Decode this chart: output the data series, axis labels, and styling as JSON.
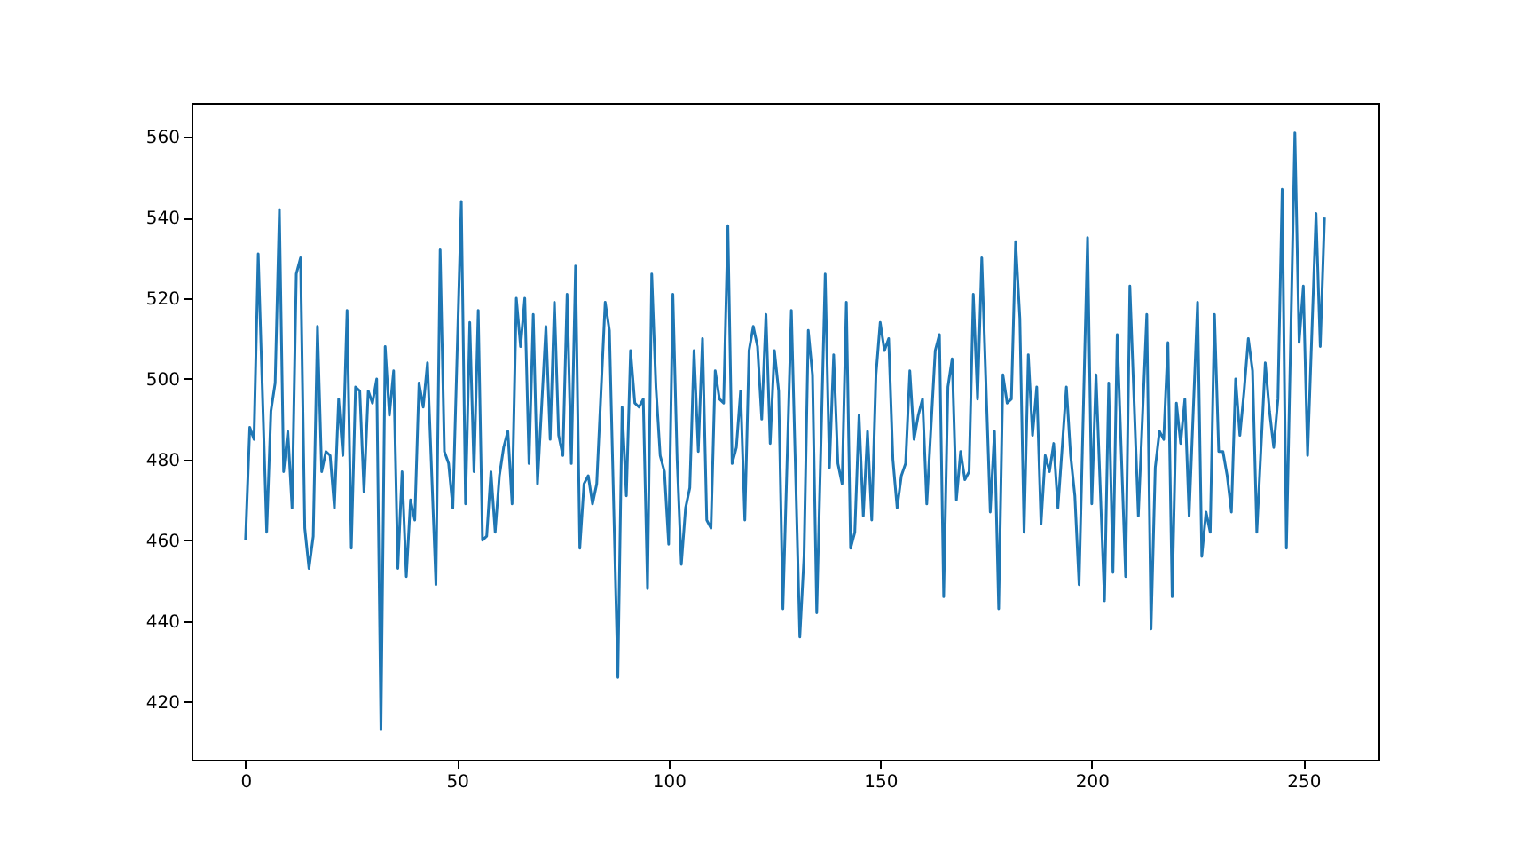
{
  "chart_data": {
    "type": "line",
    "x": [
      0,
      1,
      2,
      3,
      5,
      6,
      7,
      8,
      9,
      10,
      11,
      12,
      13,
      14,
      15,
      16,
      17,
      18,
      19,
      20,
      21,
      22,
      23,
      24,
      25,
      26,
      27,
      28,
      29,
      30,
      31,
      32,
      33,
      34,
      35,
      36,
      37,
      38,
      39,
      40,
      41,
      42,
      43,
      45,
      46,
      47,
      48,
      49,
      51,
      52,
      53,
      54,
      55,
      56,
      57,
      58,
      59,
      60,
      61,
      62,
      63,
      64,
      65,
      66,
      67,
      68,
      69,
      71,
      72,
      73,
      74,
      75,
      76,
      77,
      78,
      79,
      80,
      81,
      82,
      83,
      85,
      86,
      88,
      89,
      90,
      91,
      92,
      93,
      94,
      95,
      96,
      97,
      98,
      99,
      100,
      101,
      102,
      103,
      104,
      105,
      106,
      107,
      108,
      109,
      110,
      111,
      112,
      113,
      114,
      115,
      116,
      117,
      118,
      119,
      120,
      121,
      122,
      123,
      124,
      125,
      126,
      127,
      129,
      131,
      132,
      133,
      134,
      135,
      137,
      138,
      139,
      140,
      141,
      142,
      143,
      144,
      145,
      146,
      147,
      148,
      149,
      150,
      151,
      152,
      153,
      154,
      155,
      156,
      157,
      158,
      159,
      160,
      161,
      163,
      164,
      165,
      166,
      167,
      168,
      169,
      170,
      171,
      172,
      173,
      174,
      176,
      177,
      178,
      179,
      180,
      181,
      182,
      183,
      184,
      185,
      186,
      187,
      188,
      189,
      190,
      191,
      192,
      194,
      195,
      196,
      197,
      199,
      200,
      201,
      203,
      204,
      205,
      206,
      208,
      209,
      211,
      213,
      214,
      215,
      216,
      217,
      218,
      219,
      220,
      221,
      222,
      223,
      225,
      226,
      227,
      228,
      229,
      230,
      231,
      232,
      233,
      234,
      235,
      236,
      237,
      238,
      239,
      241,
      242,
      243,
      244,
      245,
      246,
      248,
      249,
      250,
      251,
      253,
      254,
      255
    ],
    "series": [
      {
        "color": "#1f77b4",
        "values": [
          460,
          488,
          485,
          531,
          462,
          492,
          499,
          542,
          477,
          487,
          468,
          526,
          530,
          463,
          453,
          461,
          513,
          477,
          482,
          481,
          468,
          495,
          481,
          517,
          458,
          498,
          497,
          472,
          497,
          494,
          500,
          413,
          508,
          491,
          502,
          453,
          477,
          451,
          470,
          465,
          499,
          493,
          504,
          449,
          532,
          482,
          479,
          468,
          544,
          469,
          514,
          477,
          517,
          460,
          461,
          477,
          462,
          476,
          483,
          487,
          469,
          520,
          508,
          520,
          479,
          516,
          474,
          513,
          485,
          519,
          486,
          481,
          521,
          479,
          528,
          458,
          474,
          476,
          469,
          474,
          519,
          512,
          426,
          493,
          471,
          507,
          494,
          493,
          495,
          448,
          526,
          498,
          481,
          477,
          459,
          521,
          480,
          454,
          468,
          473,
          507,
          482,
          510,
          465,
          463,
          502,
          495,
          494,
          538,
          479,
          483,
          497,
          465,
          507,
          513,
          508,
          490,
          516,
          484,
          507,
          497,
          443,
          517,
          436,
          456,
          512,
          501,
          442,
          526,
          478,
          506,
          479,
          474,
          519,
          458,
          462,
          491,
          466,
          487,
          465,
          501,
          514,
          507,
          510,
          480,
          468,
          476,
          479,
          502,
          485,
          491,
          495,
          469,
          507,
          511,
          446,
          498,
          505,
          470,
          482,
          475,
          477,
          521,
          495,
          530,
          467,
          487,
          443,
          501,
          494,
          495,
          534,
          515,
          462,
          506,
          486,
          498,
          464,
          481,
          477,
          484,
          468,
          498,
          481,
          471,
          449,
          535,
          469,
          501,
          445,
          499,
          452,
          511,
          451,
          523,
          466,
          516,
          438,
          478,
          487,
          485,
          509,
          446,
          494,
          484,
          495,
          466,
          519,
          456,
          467,
          462,
          516,
          482,
          482,
          476,
          467,
          500,
          486,
          497,
          510,
          502,
          462,
          504,
          492,
          483,
          495,
          547,
          458,
          561,
          509,
          523,
          481,
          541,
          508,
          540
        ]
      }
    ],
    "xlim": [
      -12.75,
      267.75
    ],
    "ylim": [
      405.6,
      568.4
    ],
    "xticks": [
      0,
      50,
      100,
      150,
      200,
      250
    ],
    "yticks": [
      420,
      440,
      460,
      480,
      500,
      520,
      540,
      560
    ],
    "grid": false,
    "marker": "none",
    "line_style": "solid"
  }
}
